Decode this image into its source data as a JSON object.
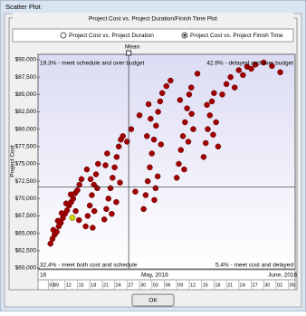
{
  "window": {
    "title": "Scatter Plot"
  },
  "plot": {
    "group_title": "Project Cost vs. Project Duration/Finish Time Plot",
    "options": [
      "Project Cost vs. Project Duration",
      "Project Cost vs. Project Finish Time"
    ],
    "selected": 1
  },
  "button": "OK",
  "chart_data": {
    "type": "scatter",
    "y_label": "Project Cost",
    "mean_label": "Mean",
    "month_labels": [
      "16",
      "May, 2016",
      "June, 2016"
    ],
    "annotations": [
      "19.3% - meet schedule and over budget",
      "42.9% - delayed and over budget",
      "32.4% - meet both cost and schedule",
      "5.4% - meet cost and delayed"
    ],
    "mean_x": 27.4,
    "mean_y": 71700,
    "xlim": [
      5.5,
      67.6
    ],
    "xticks": [
      {
        "value": 8,
        "label": "08"
      },
      {
        "value": 9,
        "label": "09"
      },
      12,
      15,
      18,
      21,
      24,
      27,
      30,
      {
        "value": 33,
        "label": "03"
      },
      {
        "value": 36,
        "label": "06"
      },
      {
        "value": 39,
        "label": "09"
      },
      {
        "value": 42,
        "label": "12"
      },
      {
        "value": 45,
        "label": "15"
      },
      {
        "value": 48,
        "label": "18"
      },
      {
        "value": 51,
        "label": "21"
      },
      {
        "value": 54,
        "label": "24"
      },
      {
        "value": 57,
        "label": "27"
      },
      {
        "value": 60,
        "label": "30"
      },
      {
        "value": 63,
        "label": "02"
      },
      {
        "value": 66,
        "label": "05"
      }
    ],
    "ylim": [
      60000,
      90000
    ],
    "yticks": [
      {
        "value": 60000,
        "label": "$60,000"
      },
      {
        "value": 62500,
        "label": "$62,500"
      },
      {
        "value": 65000,
        "label": "$65,000"
      },
      {
        "value": 67500,
        "label": "$67,500"
      },
      {
        "value": 70000,
        "label": "$70,000"
      },
      {
        "value": 72500,
        "label": "$72,500"
      },
      {
        "value": 75000,
        "label": "$75,000"
      },
      {
        "value": 77500,
        "label": "$77,500"
      },
      {
        "value": 80000,
        "label": "$80,000"
      },
      {
        "value": 82500,
        "label": "$82,500"
      },
      {
        "value": 85000,
        "label": "$85,000"
      },
      {
        "value": 87500,
        "label": "$87,500"
      },
      {
        "value": 90000,
        "label": "$90,000"
      }
    ],
    "series": [
      {
        "color": "#a00000",
        "x": [
          8.5,
          9,
          9.5,
          10,
          10.5,
          11,
          11.5,
          12,
          12.5,
          13,
          13.5,
          14,
          14.5,
          15,
          15.5,
          16,
          9.2,
          10.3,
          11.2,
          12.3,
          13.4,
          14.6,
          15.4,
          17,
          17.5,
          18,
          18.5,
          19,
          19.5,
          20,
          17.3,
          18.2,
          19.1,
          19.8,
          18.7,
          21.5,
          22,
          22.5,
          23,
          23.5,
          24,
          24.5,
          25,
          25.5,
          26,
          22.2,
          23.3,
          24.4,
          25.3,
          21.8,
          31,
          31.5,
          32,
          32.5,
          33,
          33.5,
          34,
          34.5,
          35,
          35.5,
          31.8,
          32.7,
          33.6,
          34.4,
          35.2,
          32.2,
          33.9,
          39,
          39.5,
          40,
          40.5,
          41,
          41.5,
          42,
          42.5,
          43,
          39.8,
          40.8,
          41.8,
          42.6,
          45.5,
          46,
          46.5,
          47,
          47.5,
          48,
          48.5,
          49,
          46.3,
          47.8,
          36.5,
          37.5,
          44,
          50,
          51,
          52,
          53,
          54,
          55,
          56,
          57,
          58,
          60,
          62,
          64,
          27,
          28,
          29,
          30
        ],
        "values": [
          63500,
          64200,
          64800,
          65200,
          66000,
          66500,
          67200,
          67800,
          68300,
          69000,
          69500,
          70000,
          70800,
          71200,
          72000,
          72800,
          65500,
          66800,
          67900,
          69300,
          70600,
          68200,
          66900,
          66000,
          67500,
          69000,
          70500,
          72000,
          73500,
          75000,
          74200,
          72800,
          68200,
          71500,
          65800,
          67000,
          68500,
          70000,
          71500,
          73000,
          74500,
          76000,
          77500,
          78500,
          79000,
          76500,
          67800,
          69500,
          72300,
          74800,
          68500,
          70500,
          72500,
          74500,
          76500,
          78500,
          80500,
          82500,
          84000,
          85200,
          79000,
          81500,
          69800,
          73200,
          77800,
          83600,
          71500,
          73000,
          75000,
          77000,
          79000,
          81000,
          83000,
          85000,
          86000,
          80000,
          84200,
          74200,
          78200,
          82200,
          76000,
          78000,
          80000,
          82000,
          84000,
          85200,
          81000,
          77500,
          83500,
          79200,
          86200,
          87000,
          88000,
          85000,
          86500,
          87500,
          86000,
          88500,
          87800,
          89000,
          88700,
          89300,
          89600,
          89100,
          88200,
          78200,
          80000,
          71000,
          82000
        ]
      },
      {
        "color": "#c8d000",
        "x": [
          13.8
        ],
        "values": [
          67240
        ]
      }
    ]
  }
}
